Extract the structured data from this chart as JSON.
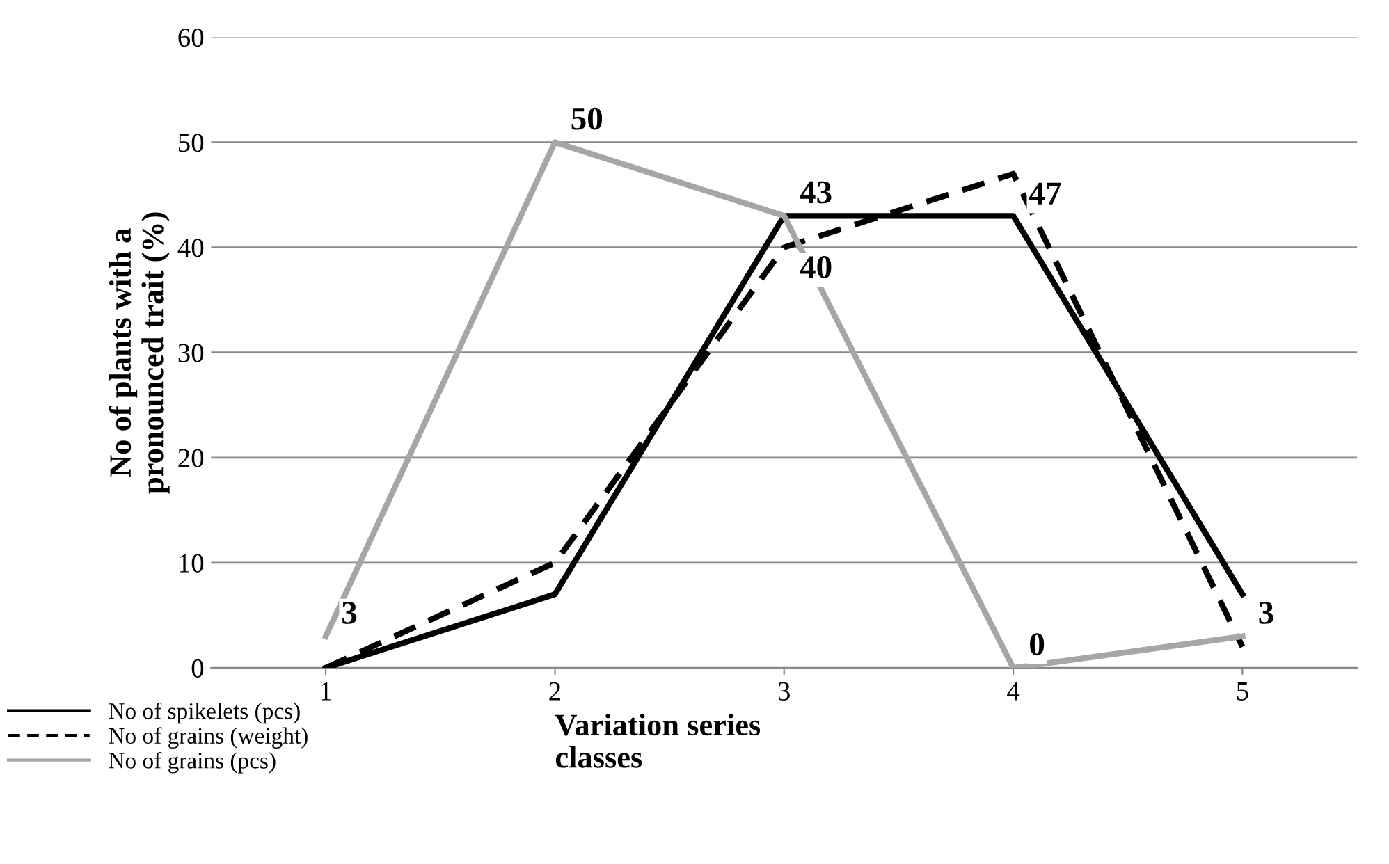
{
  "chart_data": {
    "type": "line",
    "xlabel": "Variation series\nclasses",
    "ylabel": "No of plants with a\npronounced trait (%)",
    "categories": [
      "1",
      "2",
      "3",
      "4",
      "5"
    ],
    "series": [
      {
        "name": "No of spikelets (pcs)",
        "color": "#000000",
        "line_style": "solid",
        "values": [
          0,
          7,
          43,
          43,
          7
        ]
      },
      {
        "name": "No of grains (weight)",
        "color": "#000000",
        "line_style": "dashed",
        "values": [
          0,
          10,
          40,
          47,
          2
        ],
        "value_labels": [
          null,
          null,
          "40",
          "47",
          null
        ]
      },
      {
        "name": "No of grains (pcs)",
        "color": "#a6a6a6",
        "line_style": "solid",
        "values": [
          3,
          50,
          43,
          0,
          3
        ],
        "value_labels": [
          "3",
          "50",
          "43",
          "0",
          "3"
        ]
      }
    ],
    "ylim": [
      0,
      60
    ],
    "yticks": [
      0,
      10,
      20,
      30,
      40,
      50,
      60
    ],
    "grid": "y",
    "legend": "bottom left",
    "marker": "none"
  }
}
